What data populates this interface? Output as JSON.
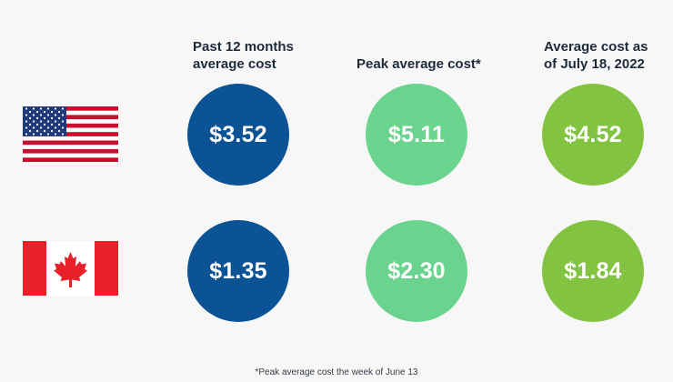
{
  "headers": {
    "past": "Past 12 months average cost",
    "peak": "Peak average cost*",
    "current": "Average cost as of July 18, 2022"
  },
  "rows": [
    {
      "country_flag": "us-flag-icon",
      "past": "$3.52",
      "peak": "$5.11",
      "current": "$4.52"
    },
    {
      "country_flag": "canada-flag-icon",
      "past": "$1.35",
      "peak": "$2.30",
      "current": "$1.84"
    }
  ],
  "footnote": "*Peak average cost the week of June 13",
  "colors": {
    "past": "#0b5394",
    "peak": "#6ad48e",
    "current": "#82c341",
    "background": "#f7f7f7"
  }
}
